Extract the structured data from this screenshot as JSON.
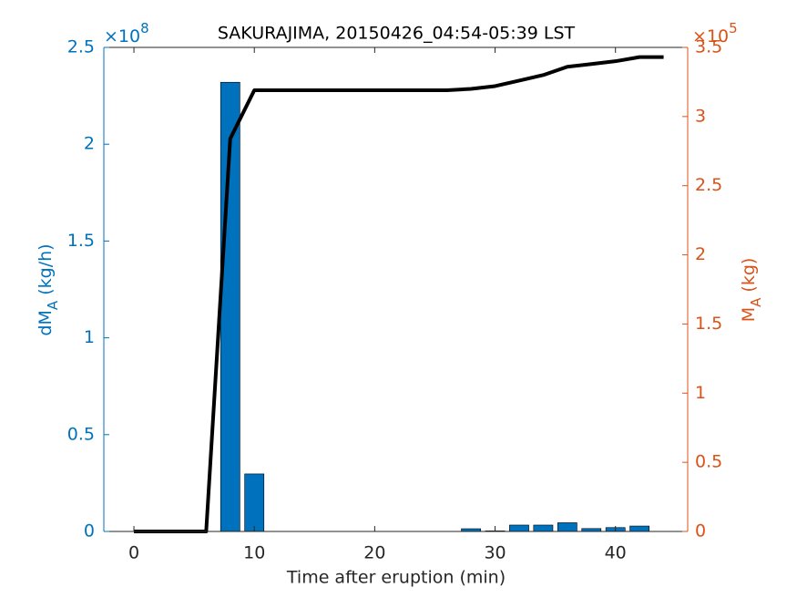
{
  "chart_data": {
    "type": "bar-line",
    "title": "SAKURAJIMA, 20150426_04:54-05:39 LST",
    "xlabel": "Time after eruption (min)",
    "ylabel": {
      "main": "dM",
      "sub": "A",
      "rest": " (kg/h)"
    },
    "y2label": {
      "main": "M",
      "sub": "A",
      "rest": " (kg)"
    },
    "y_exponent": {
      "base": "×10",
      "power": "8"
    },
    "y2_exponent": {
      "base": "×10",
      "power": "5"
    },
    "x": [
      0,
      2,
      4,
      6,
      8,
      10,
      12,
      14,
      16,
      18,
      20,
      22,
      24,
      26,
      28,
      30,
      32,
      34,
      36,
      38,
      40,
      42,
      44
    ],
    "series": [
      {
        "type": "bar",
        "axis": "y",
        "color": "#0072BD",
        "values": [
          0,
          0,
          0,
          0,
          232000000,
          29700000,
          0,
          0,
          0,
          0,
          0,
          0,
          0,
          0,
          1400000,
          300000,
          3300000,
          3300000,
          4500000,
          1500000,
          2000000,
          2800000,
          0
        ]
      },
      {
        "type": "line",
        "axis": "y2",
        "color": "#000000",
        "values": [
          0,
          0,
          0,
          0,
          284000,
          319000,
          319000,
          319000,
          319000,
          319000,
          319000,
          319000,
          319000,
          319000,
          320000,
          322000,
          326000,
          330000,
          336000,
          338000,
          340000,
          343000,
          343000
        ]
      }
    ],
    "xlim": [
      -2.5,
      46
    ],
    "xticks": [
      0,
      10,
      20,
      30,
      40
    ],
    "ylim": [
      0,
      250000000
    ],
    "yticks": [
      {
        "value": 0,
        "label": "0"
      },
      {
        "value": 50000000,
        "label": "0.5"
      },
      {
        "value": 100000000,
        "label": "1"
      },
      {
        "value": 150000000,
        "label": "1.5"
      },
      {
        "value": 200000000,
        "label": "2"
      },
      {
        "value": 250000000,
        "label": "2.5"
      }
    ],
    "y2lim": [
      0,
      350000
    ],
    "y2ticks": [
      {
        "value": 0,
        "label": "0"
      },
      {
        "value": 50000,
        "label": "0.5"
      },
      {
        "value": 100000,
        "label": "1"
      },
      {
        "value": 150000,
        "label": "1.5"
      },
      {
        "value": 200000,
        "label": "2"
      },
      {
        "value": 250000,
        "label": "2.5"
      },
      {
        "value": 300000,
        "label": "3"
      },
      {
        "value": 350000,
        "label": "3.5"
      }
    ],
    "y_color": "#0072BD",
    "y2_color": "#D95319"
  }
}
